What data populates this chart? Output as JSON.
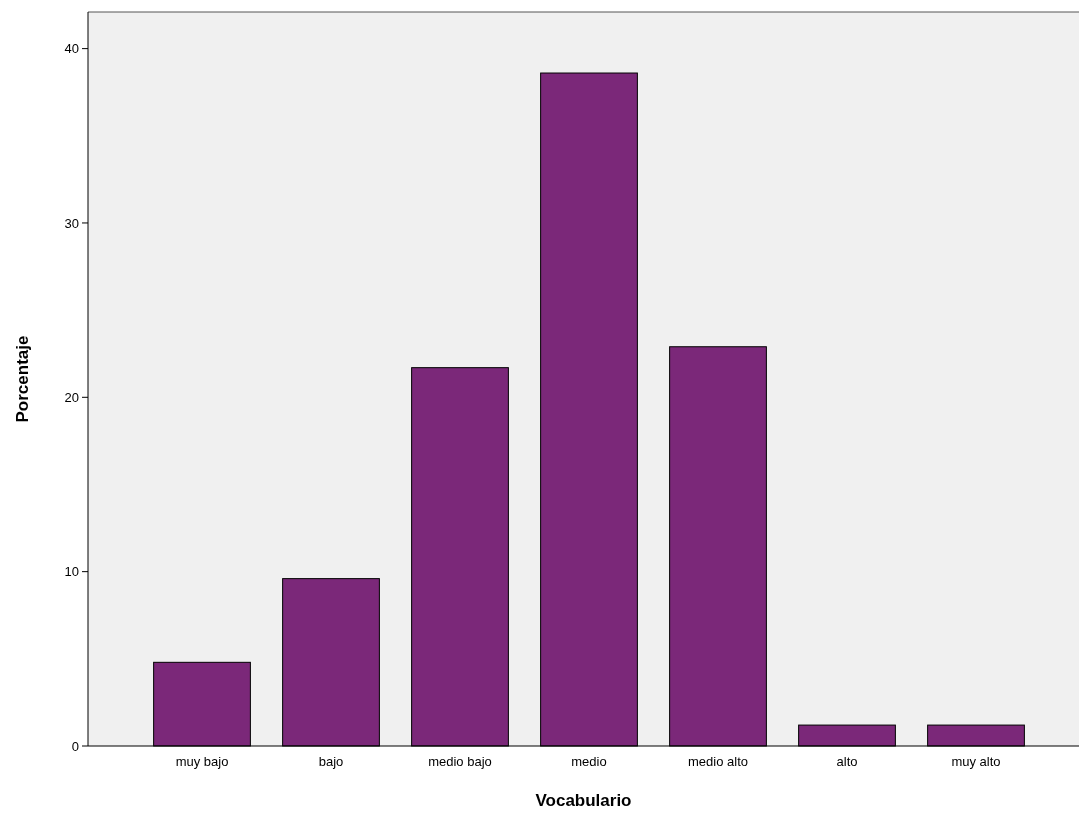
{
  "chart_data": {
    "type": "bar",
    "xlabel": "Vocabulario",
    "ylabel": "Porcentaje",
    "categories": [
      "muy bajo",
      "bajo",
      "medio bajo",
      "medio",
      "medio alto",
      "alto",
      "muy alto"
    ],
    "values": [
      4.8,
      9.6,
      21.7,
      38.6,
      22.9,
      1.2,
      1.2
    ],
    "color": "#7b2879",
    "ylim": [
      0,
      42.1
    ],
    "yticks": [
      0,
      10,
      20,
      30,
      40
    ],
    "grid": false
  }
}
